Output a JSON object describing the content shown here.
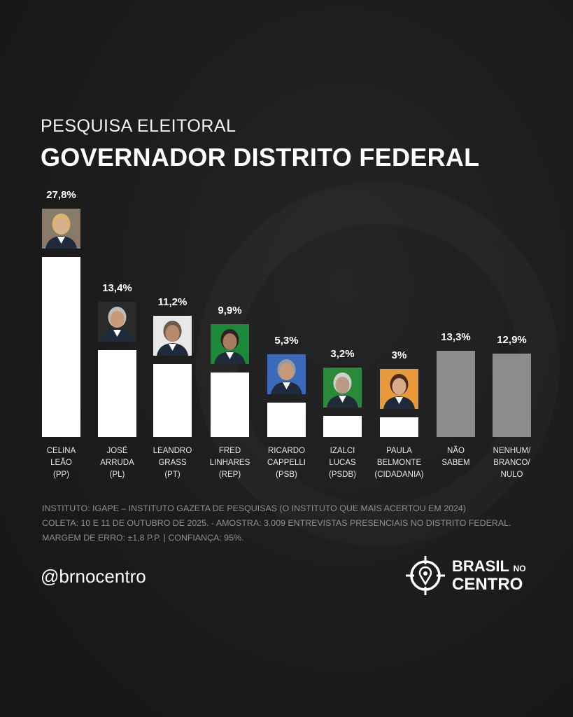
{
  "header": {
    "subtitle": "PESQUISA ELEITORAL",
    "title": "GOVERNADOR DISTRITO FEDERAL"
  },
  "chart_data": {
    "type": "bar",
    "title": "GOVERNADOR DISTRITO FEDERAL",
    "categories": [
      "CELINA\nLEÃO\n(PP)",
      "JOSÉ\nARRUDA\n(PL)",
      "LEANDRO\nGRASS\n(PT)",
      "FRED\nLINHARES\n(REP)",
      "RICARDO\nCAPPELLI\n(PSB)",
      "IZALCI\nLUCAS\n(PSDB)",
      "PAULA\nBELMONTE\n(CIDADANIA)",
      "NÃO\nSABEM",
      "NENHUM/\nBRANCO/\nNULO"
    ],
    "values": [
      27.8,
      13.4,
      11.2,
      9.9,
      5.3,
      3.2,
      3,
      13.3,
      12.9
    ],
    "value_labels": [
      "27,8%",
      "13,4%",
      "11,2%",
      "9,9%",
      "5,3%",
      "3,2%",
      "3%",
      "13,3%",
      "12,9%"
    ],
    "has_photo": [
      true,
      true,
      true,
      true,
      true,
      true,
      true,
      false,
      false
    ],
    "colors": [
      "#ffffff",
      "#ffffff",
      "#ffffff",
      "#ffffff",
      "#ffffff",
      "#ffffff",
      "#ffffff",
      "#8c8c8c",
      "#8c8c8c"
    ],
    "xlabel": "",
    "ylabel": "",
    "ylim": [
      0,
      28
    ],
    "grid": false
  },
  "notes": [
    "INSTITUTO: IGAPE – INSTITUTO GAZETA DE PESQUISAS (O INSTITUTO QUE MAIS ACERTOU EM 2024)",
    "COLETA: 10 E 11 DE OUTUBRO DE 2025. - AMOSTRA: 3.009 ENTREVISTAS PRESENCIAIS NO DISTRITO FEDERAL.",
    "MARGEM DE ERRO: ±1,8 P.P. | CONFIANÇA: 95%."
  ],
  "footer": {
    "handle": "@brnocentro",
    "logo_line1": "BRASIL",
    "logo_no": "NO",
    "logo_line2": "CENTRO"
  }
}
